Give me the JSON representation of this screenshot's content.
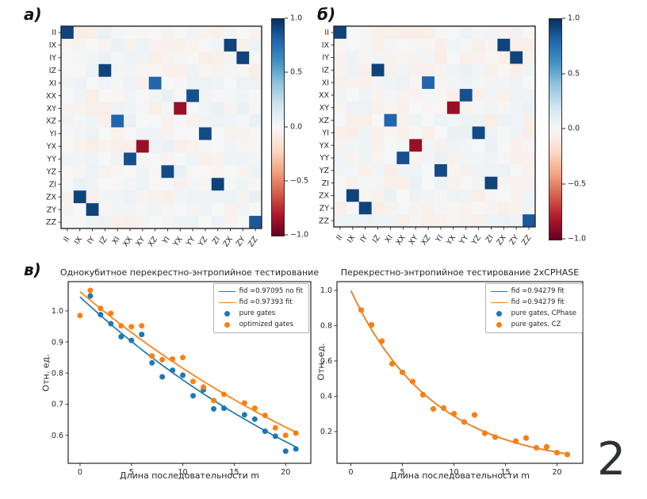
{
  "page": {
    "number": "2"
  },
  "panel_labels": {
    "a": "а)",
    "b": "б)",
    "v": "в)"
  },
  "pauli_labels": [
    "II",
    "IX",
    "IY",
    "IZ",
    "XI",
    "XX",
    "XY",
    "XZ",
    "YI",
    "YX",
    "YY",
    "YZ",
    "ZI",
    "ZX",
    "ZY",
    "ZZ"
  ],
  "colorbar": {
    "ticks": [
      "1.0",
      "0.5",
      "0.0",
      "−0.5",
      "−1.0"
    ],
    "vmax_color": "#053061",
    "vmin_color": "#67001f"
  },
  "colors": {
    "blue": "#1f77b4",
    "orange": "#ff7f0e"
  },
  "chart_data": [
    {
      "type": "heatmap",
      "panel": "а)",
      "description": "Pauli transfer matrix of two-qubit CZ-type gate",
      "row_labels": "pauli_labels",
      "col_labels": "pauli_labels",
      "vmin": -1,
      "vmax": 1,
      "strong_cells": [
        [
          0,
          0,
          0.93
        ],
        [
          1,
          13,
          0.93
        ],
        [
          2,
          14,
          0.93
        ],
        [
          3,
          3,
          0.93
        ],
        [
          4,
          7,
          0.8
        ],
        [
          5,
          10,
          0.88
        ],
        [
          6,
          9,
          -0.87
        ],
        [
          7,
          4,
          0.8
        ],
        [
          8,
          11,
          0.9
        ],
        [
          9,
          6,
          -0.87
        ],
        [
          10,
          5,
          0.88
        ],
        [
          11,
          8,
          0.9
        ],
        [
          12,
          12,
          0.93
        ],
        [
          13,
          1,
          0.93
        ],
        [
          14,
          2,
          0.93
        ],
        [
          15,
          15,
          0.85
        ]
      ],
      "noise_seed": 7,
      "noise_amp": 0.07
    },
    {
      "type": "heatmap",
      "panel": "б)",
      "description": "Pauli transfer matrix of two-qubit CZ-type gate",
      "row_labels": "pauli_labels",
      "col_labels": "pauli_labels",
      "vmin": -1,
      "vmax": 1,
      "strong_cells": [
        [
          0,
          0,
          0.93
        ],
        [
          1,
          13,
          0.93
        ],
        [
          2,
          14,
          0.93
        ],
        [
          3,
          3,
          0.93
        ],
        [
          4,
          7,
          0.8
        ],
        [
          5,
          10,
          0.88
        ],
        [
          6,
          9,
          -0.87
        ],
        [
          7,
          4,
          0.8
        ],
        [
          8,
          11,
          0.9
        ],
        [
          9,
          6,
          -0.87
        ],
        [
          10,
          5,
          0.88
        ],
        [
          11,
          8,
          0.9
        ],
        [
          12,
          12,
          0.93
        ],
        [
          13,
          1,
          0.93
        ],
        [
          14,
          2,
          0.93
        ],
        [
          15,
          15,
          0.85
        ]
      ],
      "noise_seed": 13,
      "noise_amp": 0.07
    },
    {
      "type": "line+scatter",
      "panel": "в)",
      "title": "Однокубитное перекрестно-энтропийное тестирование",
      "xlabel": "Длина последовательности m",
      "ylabel": "Отн. ед.",
      "xlim": [
        -1.15,
        22.45
      ],
      "ylim": [
        0.51,
        1.094
      ],
      "xticks": [
        0,
        5,
        10,
        15,
        20
      ],
      "yticks": [
        0.6,
        0.7,
        0.8,
        0.9,
        1.0
      ],
      "series": [
        {
          "kind": "fit_line",
          "label": "fid =0.97095 no fit",
          "color": "blue",
          "amplitude": 1.045,
          "decay": 0.97095,
          "x_range": [
            0,
            21
          ]
        },
        {
          "kind": "fit_line",
          "label": "fid =0.97393 fit",
          "color": "orange",
          "amplitude": 1.062,
          "decay": 0.97393,
          "x_range": [
            0,
            21
          ]
        },
        {
          "kind": "scatter",
          "label": "pure gates",
          "color": "blue",
          "points": [
            [
              1,
              1.048
            ],
            [
              2,
              0.988
            ],
            [
              3,
              0.959
            ],
            [
              4,
              0.917
            ],
            [
              5,
              0.905
            ],
            [
              6,
              0.924
            ],
            [
              7,
              0.833
            ],
            [
              8,
              0.788
            ],
            [
              9,
              0.809
            ],
            [
              10,
              0.793
            ],
            [
              11,
              0.727
            ],
            [
              12,
              0.746
            ],
            [
              13,
              0.685
            ],
            [
              14,
              0.687
            ],
            [
              16,
              0.666
            ],
            [
              17,
              0.652
            ],
            [
              18,
              0.613
            ],
            [
              19,
              0.597
            ],
            [
              20,
              0.549
            ],
            [
              21,
              0.556
            ]
          ]
        },
        {
          "kind": "scatter",
          "label": "optimized gates",
          "color": "orange",
          "points": [
            [
              0,
              0.985
            ],
            [
              1,
              1.066
            ],
            [
              2,
              1.008
            ],
            [
              3,
              0.992
            ],
            [
              4,
              0.952
            ],
            [
              5,
              0.949
            ],
            [
              6,
              0.952
            ],
            [
              7,
              0.855
            ],
            [
              8,
              0.843
            ],
            [
              9,
              0.845
            ],
            [
              10,
              0.85
            ],
            [
              11,
              0.773
            ],
            [
              12,
              0.755
            ],
            [
              13,
              0.712
            ],
            [
              14,
              0.732
            ],
            [
              16,
              0.704
            ],
            [
              17,
              0.687
            ],
            [
              18,
              0.664
            ],
            [
              19,
              0.624
            ],
            [
              20,
              0.6
            ],
            [
              21,
              0.607
            ]
          ]
        }
      ]
    },
    {
      "type": "line+scatter",
      "title": "Перекрестно-энтропийное тестирование 2xCPHASE",
      "xlabel": "Длина последовательности m",
      "ylabel": "Отн. ед.",
      "xlim": [
        -1.35,
        22.5
      ],
      "ylim": [
        0.02,
        1.049
      ],
      "xticks": [
        0,
        5,
        10,
        15,
        20
      ],
      "yticks": [
        0.2,
        0.4,
        0.6,
        0.8,
        1.0
      ],
      "series": [
        {
          "kind": "fit_line",
          "label": "fid =0.94279 fit",
          "color": "blue",
          "amplitude": 0.998,
          "decay": 0.883,
          "x_range": [
            0,
            21
          ],
          "hidden_under": "orange fit line"
        },
        {
          "kind": "fit_line",
          "label": "fid =0.94279 fit",
          "color": "orange",
          "amplitude": 0.998,
          "decay": 0.883,
          "x_range": [
            0,
            21
          ]
        },
        {
          "kind": "scatter",
          "label": "pure gates, CPhase",
          "color": "blue",
          "hidden_under": "pure gates, CZ",
          "points": [
            [
              1,
              0.888
            ],
            [
              2,
              0.804
            ],
            [
              3,
              0.712
            ],
            [
              4,
              0.584
            ],
            [
              5,
              0.535
            ],
            [
              6,
              0.483
            ],
            [
              7,
              0.408
            ],
            [
              8,
              0.328
            ],
            [
              9,
              0.333
            ],
            [
              10,
              0.301
            ],
            [
              11,
              0.254
            ],
            [
              12,
              0.294
            ],
            [
              13,
              0.19
            ],
            [
              14,
              0.168
            ],
            [
              16,
              0.145
            ],
            [
              17,
              0.163
            ],
            [
              18,
              0.108
            ],
            [
              19,
              0.113
            ],
            [
              20,
              0.08
            ],
            [
              21,
              0.07
            ]
          ]
        },
        {
          "kind": "scatter",
          "label": "pure gates, CZ",
          "color": "orange",
          "points": [
            [
              1,
              0.888
            ],
            [
              2,
              0.804
            ],
            [
              3,
              0.712
            ],
            [
              4,
              0.584
            ],
            [
              5,
              0.535
            ],
            [
              6,
              0.483
            ],
            [
              7,
              0.408
            ],
            [
              8,
              0.328
            ],
            [
              9,
              0.333
            ],
            [
              10,
              0.301
            ],
            [
              11,
              0.254
            ],
            [
              12,
              0.294
            ],
            [
              13,
              0.19
            ],
            [
              14,
              0.168
            ],
            [
              16,
              0.145
            ],
            [
              17,
              0.163
            ],
            [
              18,
              0.108
            ],
            [
              19,
              0.113
            ],
            [
              20,
              0.08
            ],
            [
              21,
              0.07
            ]
          ]
        }
      ]
    }
  ]
}
